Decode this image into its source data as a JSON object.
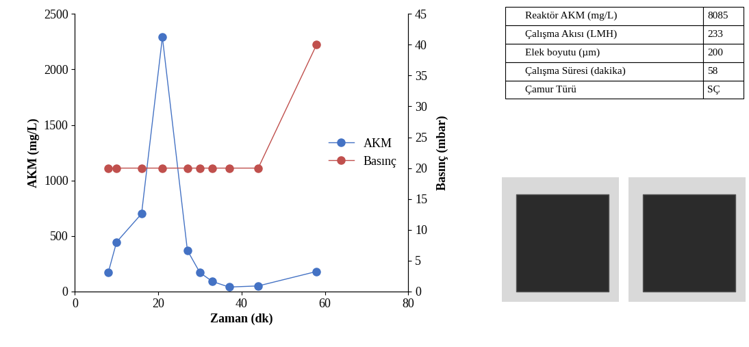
{
  "chart_data": {
    "type": "line",
    "x_label": "Zaman (dk)",
    "y_label": "AKM (mg/L)",
    "y2_label": "Basınç (mbar)",
    "xlim": [
      0,
      80
    ],
    "xticks": [
      0,
      20,
      40,
      60,
      80
    ],
    "ylim": [
      0,
      2500
    ],
    "yticks": [
      0,
      500,
      1000,
      1500,
      2000,
      2500
    ],
    "y2lim": [
      0,
      45
    ],
    "y2ticks": [
      0,
      5,
      10,
      15,
      20,
      25,
      30,
      35,
      40,
      45
    ],
    "legend": "center right",
    "series": [
      {
        "name": "AKM",
        "color": "#4472c4",
        "marker": "o",
        "line_style": "solid",
        "axis": "y",
        "x": [
          8,
          10,
          16,
          21,
          27,
          30,
          33,
          37,
          44,
          58
        ],
        "values": [
          170,
          445,
          700,
          2290,
          370,
          170,
          90,
          40,
          50,
          180
        ]
      },
      {
        "name": "Basınç",
        "color": "#c0504d",
        "marker": "o",
        "line_style": "solid",
        "axis": "y2",
        "x": [
          8,
          10,
          16,
          21,
          27,
          30,
          33,
          37,
          44,
          58
        ],
        "values": [
          20,
          20,
          20,
          20,
          20,
          20,
          20,
          20,
          20,
          40
        ]
      }
    ],
    "table": {
      "rows": [
        [
          "Reaktör AKM (mg/L)",
          "8085"
        ],
        [
          "Çalışma Akısı (LMH)",
          "233"
        ],
        [
          "Elek boyutu (µm)",
          "200"
        ],
        [
          "Çalışma Süresi (dakika)",
          "58"
        ],
        [
          "Çamur Türü",
          "SÇ"
        ]
      ]
    }
  }
}
